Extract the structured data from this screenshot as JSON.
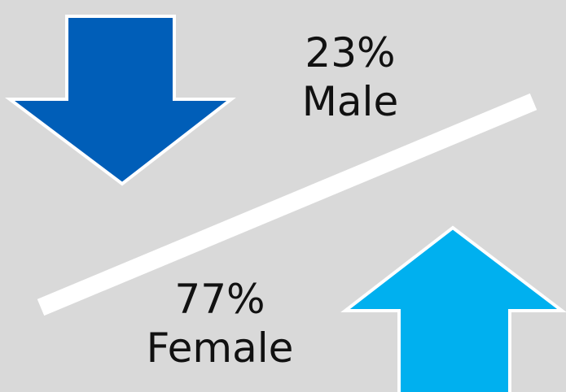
{
  "male": {
    "percent": "23%",
    "label": "Male",
    "arrow_icon": "arrow-down-icon",
    "color": "#005eb8"
  },
  "female": {
    "percent": "77%",
    "label": "Female",
    "arrow_icon": "arrow-up-icon",
    "color": "#00b0ef"
  },
  "background_color": "#d9d9d9",
  "divider_color": "#ffffff"
}
